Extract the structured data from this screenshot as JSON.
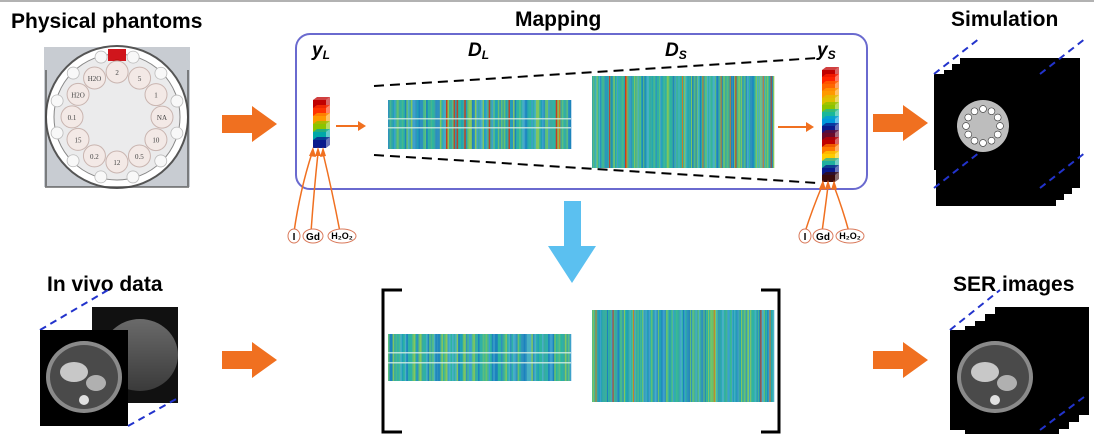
{
  "titles": {
    "physical_phantoms": "Physical phantoms",
    "mapping": "Mapping",
    "simulation": "Simulation",
    "in_vivo": "In vivo data",
    "ser_images": "SER images"
  },
  "matrix_labels": {
    "yL_main": "y",
    "yL_sub": "L",
    "DL_main": "D",
    "DL_sub": "L",
    "DS_main": "D",
    "DS_sub": "S",
    "yS_main": "y",
    "yS_sub": "S"
  },
  "phantom_vials": [
    "2",
    "5",
    "1",
    "NA",
    "10",
    "0.5",
    "12",
    "0.2",
    "15",
    "0.1",
    "H2O",
    "H2O"
  ],
  "inputs_left": [
    "I",
    "Gd",
    "H₂O₂"
  ],
  "inputs_right": [
    "I",
    "Gd",
    "H₂O₂"
  ],
  "colors": {
    "arrow_orange": "#f07020",
    "arrow_blue": "#5bc0f0",
    "frame": "#6a6acf",
    "dashes": "#2233cc",
    "label_circle": "#d9795a"
  },
  "color_bar_left": [
    "#c00000",
    "#ff3300",
    "#ff9900",
    "#8bc400",
    "#00a8a8",
    "#0a1a8c"
  ],
  "color_bar_right": [
    "#c00000",
    "#ff2200",
    "#ff6600",
    "#ff9900",
    "#e0c000",
    "#8bc400",
    "#19b89a",
    "#0099dd",
    "#0a1a8c",
    "#6a0a2a",
    "#c00000",
    "#ff7700",
    "#ffcc00",
    "#20b0a0",
    "#0a1a8c",
    "#3a0a0a"
  ]
}
